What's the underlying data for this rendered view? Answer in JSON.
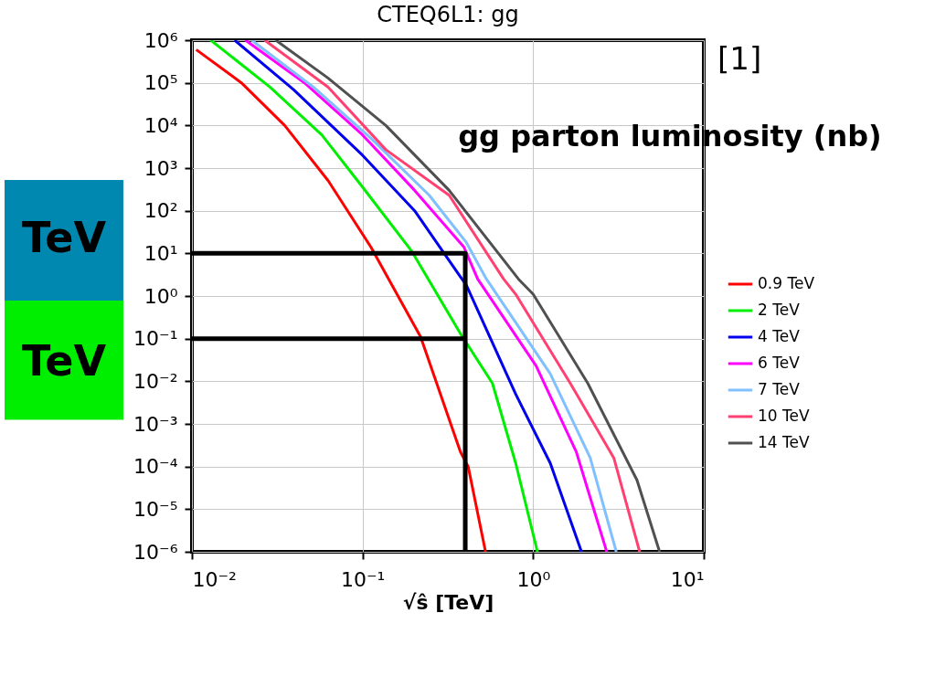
{
  "chart_data": {
    "type": "line",
    "title": "CTEQ6L1: gg",
    "xlabel": "√ŝ [TeV]",
    "log": "xy",
    "grid": true,
    "legend": "right",
    "xlim": [
      0.01,
      10
    ],
    "ylim": [
      1e-06,
      1000000.0
    ],
    "xticks": [
      {
        "value": 0.01,
        "label": "10⁻²"
      },
      {
        "value": 0.1,
        "label": "10⁻¹"
      },
      {
        "value": 1,
        "label": "10⁰"
      },
      {
        "value": 10,
        "label": "10¹"
      }
    ],
    "yticks": [
      {
        "value": 1e-06,
        "label": "10⁻⁶"
      },
      {
        "value": 1e-05,
        "label": "10⁻⁵"
      },
      {
        "value": 0.0001,
        "label": "10⁻⁴"
      },
      {
        "value": 0.001,
        "label": "10⁻³"
      },
      {
        "value": 0.01,
        "label": "10⁻²"
      },
      {
        "value": 0.1,
        "label": "10⁻¹"
      },
      {
        "value": 1,
        "label": "10⁰"
      },
      {
        "value": 10,
        "label": "10¹"
      },
      {
        "value": 100,
        "label": "10²"
      },
      {
        "value": 1000.0,
        "label": "10³"
      },
      {
        "value": 10000.0,
        "label": "10⁴"
      },
      {
        "value": 100000.0,
        "label": "10⁵"
      },
      {
        "value": 1000000.0,
        "label": "10⁶"
      }
    ],
    "annotations": [
      "[1]",
      "gg parton luminosity (nb)",
      "TeV",
      "TeV"
    ],
    "series": [
      {
        "name": "0.9 TeV",
        "color": "#ff0000",
        "x": [
          0.0106,
          0.0195,
          0.035,
          0.063,
          0.112,
          0.219,
          0.375,
          0.416,
          0.526
        ],
        "values": [
          600000.0,
          100000.0,
          10000.0,
          500,
          14,
          0.11,
          0.00022,
          0.0001,
          1e-06
        ]
      },
      {
        "name": "2 TeV",
        "color": "#00ee00",
        "x": [
          0.0129,
          0.0286,
          0.0577,
          0.1,
          0.195,
          0.375,
          0.577,
          0.79,
          1.06
        ],
        "values": [
          1000000.0,
          80000.0,
          6000.0,
          360,
          11,
          0.13,
          0.009,
          0.00012,
          1e-06
        ]
      },
      {
        "name": "4 TeV",
        "color": "#0000ee",
        "x": [
          0.0178,
          0.0393,
          0.1,
          0.202,
          0.375,
          0.406,
          0.79,
          1.26,
          1.92
        ],
        "values": [
          1000000.0,
          70000.0,
          2000.0,
          100,
          2.8,
          1.8,
          0.005,
          0.00012,
          1e-06
        ]
      },
      {
        "name": "6 TeV",
        "color": "#ff00ff",
        "x": [
          0.0206,
          0.0457,
          0.1,
          0.202,
          0.393,
          0.473,
          1.04,
          1.79,
          2.7
        ],
        "values": [
          1000000.0,
          100000.0,
          6000.0,
          300,
          14,
          2.5,
          0.023,
          0.00022,
          1e-06
        ]
      },
      {
        "name": "7 TeV",
        "color": "#80c0ff",
        "x": [
          0.0224,
          0.0514,
          0.112,
          0.246,
          0.406,
          0.532,
          1.26,
          2.16,
          3.07
        ],
        "values": [
          1000000.0,
          80000.0,
          5000.0,
          230,
          18,
          2.5,
          0.015,
          0.00016,
          1e-06
        ]
      },
      {
        "name": "10 TeV",
        "color": "#ff4070",
        "x": [
          0.0267,
          0.0627,
          0.137,
          0.322,
          0.671,
          0.79,
          1.65,
          2.97,
          4.21
        ],
        "values": [
          1000000.0,
          80000.0,
          2700.0,
          230,
          2.5,
          1.1,
          0.009,
          0.00016,
          1e-06
        ]
      },
      {
        "name": "14 TeV",
        "color": "#505050",
        "x": [
          0.031,
          0.0627,
          0.137,
          0.322,
          0.82,
          1.0,
          2.09,
          4.06,
          5.51
        ],
        "values": [
          1000000.0,
          130000.0,
          10000.0,
          300,
          2.5,
          1.1,
          0.009,
          4.8e-05,
          1e-06
        ]
      },
      {
        "color": "#000000",
        "x": [
          0.01,
          0.4,
          0.4
        ],
        "values": [
          10,
          10,
          1e-06
        ]
      },
      {
        "color": "#000000",
        "x": [
          0.01,
          0.4
        ],
        "values": [
          0.1,
          0.1
        ]
      }
    ]
  }
}
